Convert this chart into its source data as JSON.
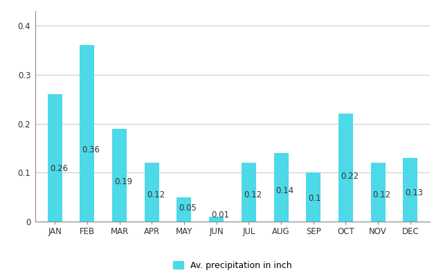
{
  "months": [
    "JAN",
    "FEB",
    "MAR",
    "APR",
    "MAY",
    "JUN",
    "JUL",
    "AUG",
    "SEP",
    "OCT",
    "NOV",
    "DEC"
  ],
  "values": [
    0.26,
    0.36,
    0.19,
    0.12,
    0.05,
    0.01,
    0.12,
    0.14,
    0.1,
    0.22,
    0.12,
    0.13
  ],
  "bar_color": "#4DD9E8",
  "label_color": "#333333",
  "background_color": "#ffffff",
  "grid_color": "#cccccc",
  "ylabel_ticks": [
    0,
    0.1,
    0.2,
    0.3,
    0.4
  ],
  "ylim": [
    0,
    0.43
  ],
  "legend_label": "Av. precipitation in inch",
  "label_fontsize": 8.5,
  "tick_fontsize": 8.5,
  "bar_width": 0.45
}
